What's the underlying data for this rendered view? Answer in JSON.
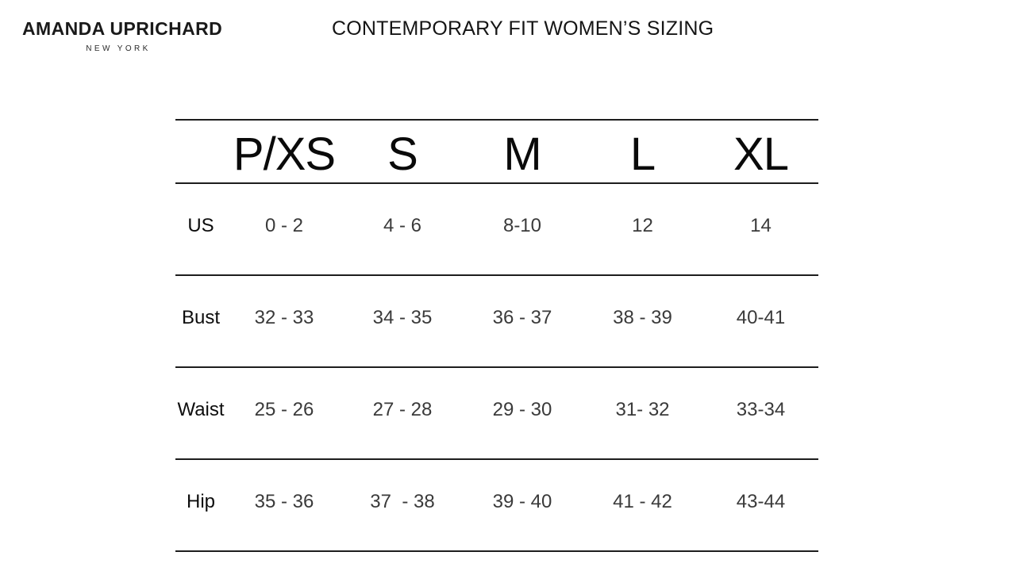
{
  "brand": {
    "name": "AMANDA UPRICHARD",
    "subtitle": "NEW YORK"
  },
  "title": "CONTEMPORARY FIT WOMEN’S SIZING",
  "size_chart": {
    "type": "table",
    "columns": [
      "P/XS",
      "S",
      "M",
      "L",
      "XL"
    ],
    "rows": [
      {
        "label": "US",
        "values": [
          "0 - 2",
          "4 - 6",
          "8-10",
          "12",
          "14"
        ]
      },
      {
        "label": "Bust",
        "values": [
          "32 - 33",
          "34 - 35",
          "36 - 37",
          "38 - 39",
          "40-41"
        ]
      },
      {
        "label": "Waist",
        "values": [
          "25 - 26",
          "27 - 28",
          "29 - 30",
          "31- 32",
          "33-34"
        ]
      },
      {
        "label": "Hip",
        "values": [
          "35 - 36",
          "37  - 38",
          "39 - 40",
          "41 - 42",
          "43-44"
        ]
      }
    ]
  }
}
